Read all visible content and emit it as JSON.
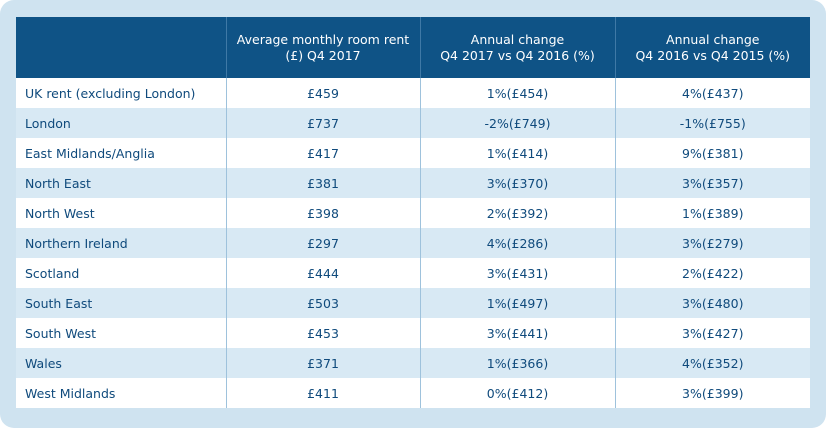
{
  "table": {
    "headers": [
      {
        "line1": "",
        "line2": ""
      },
      {
        "line1": "Average monthly room rent",
        "line2": "(£) Q4 2017"
      },
      {
        "line1": "Annual change",
        "line2": "Q4 2017 vs Q4 2016 (%)"
      },
      {
        "line1": "Annual change",
        "line2": "Q4 2016 vs Q4 2015 (%)"
      }
    ],
    "rows": [
      {
        "region": "UK rent (excluding London)",
        "rent": "£459",
        "change_2017": "1%(£454)",
        "change_2016": "4%(£437)"
      },
      {
        "region": "London",
        "rent": "£737",
        "change_2017": "-2%(£749)",
        "change_2016": "-1%(£755)"
      },
      {
        "region": "East Midlands/Anglia",
        "rent": "£417",
        "change_2017": "1%(£414)",
        "change_2016": "9%(£381)"
      },
      {
        "region": "North East",
        "rent": "£381",
        "change_2017": "3%(£370)",
        "change_2016": "3%(£357)"
      },
      {
        "region": "North West",
        "rent": "£398",
        "change_2017": "2%(£392)",
        "change_2016": "1%(£389)"
      },
      {
        "region": "Northern Ireland",
        "rent": "£297",
        "change_2017": "4%(£286)",
        "change_2016": "3%(£279)"
      },
      {
        "region": "Scotland",
        "rent": "£444",
        "change_2017": "3%(£431)",
        "change_2016": "2%(£422)"
      },
      {
        "region": "South East",
        "rent": "£503",
        "change_2017": "1%(£497)",
        "change_2016": "3%(£480)"
      },
      {
        "region": "South West",
        "rent": "£453",
        "change_2017": "3%(£441)",
        "change_2016": "3%(£427)"
      },
      {
        "region": "Wales",
        "rent": "£371",
        "change_2017": "1%(£366)",
        "change_2016": "4%(£352)"
      },
      {
        "region": "West Midlands",
        "rent": "£411",
        "change_2017": "0%(£412)",
        "change_2016": "3%(£399)"
      }
    ]
  },
  "colors": {
    "frame_background": "#cfe3f0",
    "header_background": "#0f5386",
    "header_text": "#ffffff",
    "row_alt_background": "#d8e9f4",
    "cell_text": "#0f4a7c"
  }
}
